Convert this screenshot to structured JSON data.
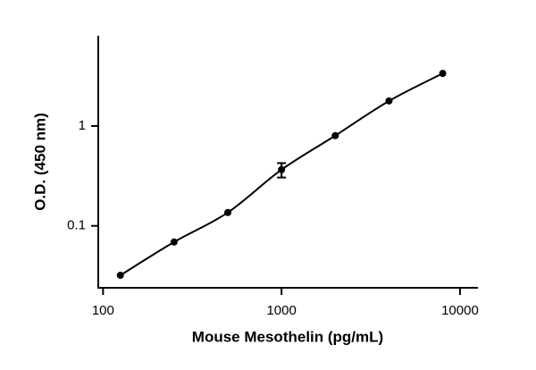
{
  "chart_data": {
    "type": "scatter",
    "x_label": "Mouse Mesothelin (pg/mL)",
    "y_label": "O.D. (450 nm)",
    "xscale": "log",
    "yscale": "log",
    "xlim": [
      94,
      12600
    ],
    "ylim": [
      0.024,
      8
    ],
    "xticks": [
      100,
      1000,
      10000
    ],
    "yticks": [
      0.1,
      1
    ],
    "fit_line": true,
    "series": [
      {
        "color": "#000000",
        "x": [
          125,
          250,
          500,
          1000,
          2000,
          4000,
          8000
        ],
        "values": [
          0.032,
          0.069,
          0.136,
          0.365,
          0.8,
          1.78,
          3.36
        ],
        "errors": [
          null,
          null,
          null,
          0.06,
          null,
          null,
          null
        ]
      }
    ]
  }
}
